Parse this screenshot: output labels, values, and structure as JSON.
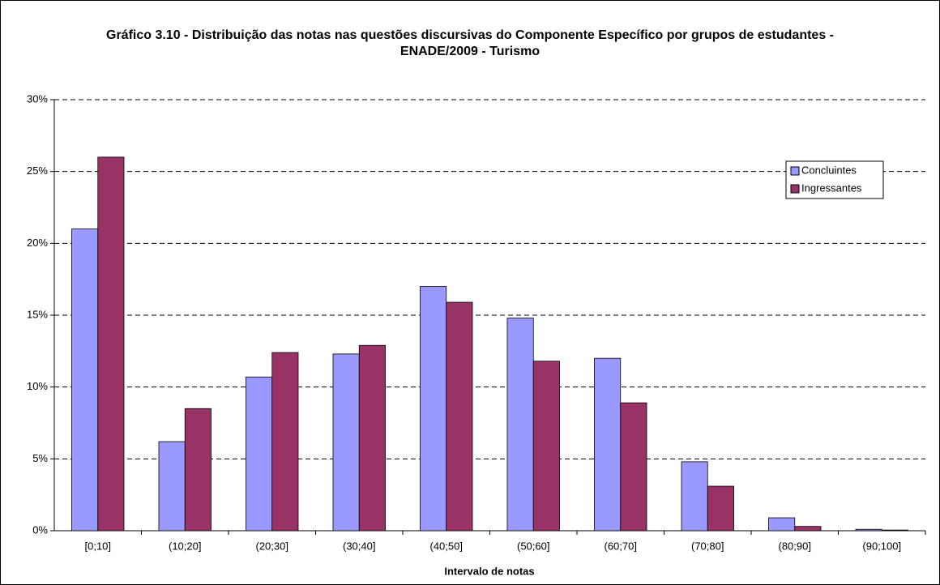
{
  "chart_data": {
    "type": "bar",
    "title": "Gráfico 3.10 - Distribuição das notas nas questões discursivas do Componente Específico por grupos de estudantes - ENADE/2009 - Turismo",
    "x_label": "Intervalo de notas",
    "categories": [
      "[0;10]",
      "(10;20]",
      "(20;30]",
      "(30;40]",
      "(40;50]",
      "(50;60]",
      "(60;70]",
      "(70;80]",
      "(80;90]",
      "(90;100]"
    ],
    "series": [
      {
        "name": "Concluintes",
        "color": "#9999ff",
        "values": [
          21.0,
          6.2,
          10.7,
          12.3,
          17.0,
          14.8,
          12.0,
          4.8,
          0.9,
          0.1
        ]
      },
      {
        "name": "Ingressantes",
        "color": "#993366",
        "values": [
          26.0,
          8.5,
          12.4,
          12.9,
          15.9,
          11.8,
          8.9,
          3.1,
          0.3,
          0.05
        ]
      }
    ],
    "ylim": [
      0,
      30
    ],
    "yticks": [
      {
        "value": 0,
        "label": "0%"
      },
      {
        "value": 5,
        "label": "5%"
      },
      {
        "value": 10,
        "label": "10%"
      },
      {
        "value": 15,
        "label": "15%"
      },
      {
        "value": 20,
        "label": "20%"
      },
      {
        "value": 25,
        "label": "25%"
      },
      {
        "value": 30,
        "label": "30%"
      }
    ],
    "grid": true,
    "legend": "upper right"
  }
}
